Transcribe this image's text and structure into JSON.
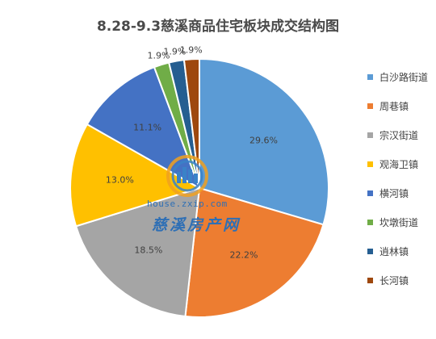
{
  "chart_data": {
    "type": "pie",
    "title": "8.28-9.3慈溪商品住宅板块成交结构图",
    "slices": [
      {
        "label": "白沙路街道",
        "value": 29.6,
        "value_label": "29.6%",
        "color": "#5b9bd5"
      },
      {
        "label": "周巷镇",
        "value": 22.2,
        "value_label": "22.2%",
        "color": "#ed7d31"
      },
      {
        "label": "宗汉街道",
        "value": 18.5,
        "value_label": "18.5%",
        "color": "#a5a5a5"
      },
      {
        "label": "观海卫镇",
        "value": 13.0,
        "value_label": "13.0%",
        "color": "#ffc000"
      },
      {
        "label": "横河镇",
        "value": 11.1,
        "value_label": "11.1%",
        "color": "#4472c4"
      },
      {
        "label": "坎墩街道",
        "value": 1.9,
        "value_label": "1.9%",
        "color": "#70ad47"
      },
      {
        "label": "逍林镇",
        "value": 1.9,
        "value_label": "1.9%",
        "color": "#255e91"
      },
      {
        "label": "长河镇",
        "value": 1.9,
        "value_label": "1.9%",
        "color": "#9e480e"
      }
    ],
    "legend_position": "right"
  },
  "watermark": {
    "url": "house.zxip.com",
    "name": "慈溪房产网"
  }
}
